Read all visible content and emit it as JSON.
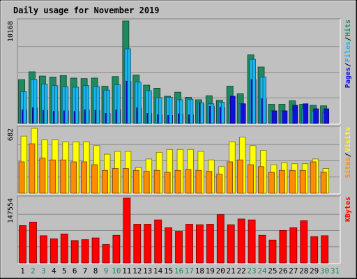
{
  "chart_data": {
    "type": "bar",
    "title": "Daily usage for November 2019",
    "days": [
      "1",
      "2",
      "3",
      "4",
      "5",
      "6",
      "7",
      "8",
      "9",
      "10",
      "11",
      "12",
      "13",
      "14",
      "15",
      "16",
      "17",
      "18",
      "19",
      "20",
      "21",
      "22",
      "23",
      "24",
      "25",
      "26",
      "27",
      "28",
      "29",
      "30",
      "31"
    ],
    "weekend_days": [
      "2",
      "3",
      "9",
      "10",
      "16",
      "17",
      "23",
      "24",
      "30",
      "31"
    ],
    "colors": {
      "background": "#c0c0c0",
      "title": "#0000cc",
      "hits": "#1f8a5f",
      "files": "#1ab6ef",
      "pages": "#1010dd",
      "visits": "#ffff00",
      "sites": "#ff8c00",
      "kbytes": "#ff0000",
      "weekend_label": "#1f8a5f",
      "weekday_label": "#000000"
    },
    "panels": [
      {
        "max_label": "10168",
        "ymax": 10168,
        "legend": [
          {
            "text": "Hits",
            "color": "#1f8a5f"
          },
          {
            "text": "Files",
            "color": "#1ab6ef"
          },
          {
            "text": "Pages",
            "color": "#1010dd"
          }
        ],
        "series": [
          {
            "name": "Hits",
            "values": [
              4350,
              5120,
              4700,
              4600,
              4750,
              4500,
              4450,
              4500,
              3700,
              4650,
              10168,
              4800,
              3800,
              3500,
              2700,
              3100,
              2600,
              2350,
              2750,
              2300,
              3700,
              2950,
              6800,
              5600,
              1900,
              1900,
              2250,
              1900,
              1800,
              1750,
              null
            ]
          },
          {
            "name": "Files",
            "values": [
              3150,
              4350,
              3900,
              3750,
              3650,
              3600,
              3750,
              3650,
              3300,
              3850,
              7400,
              4100,
              3250,
              2550,
              2600,
              2350,
              2400,
              2050,
              1950,
              2100,
              2000,
              1950,
              6350,
              4600,
              1250,
              1250,
              1350,
              1500,
              1200,
              1100,
              null
            ]
          },
          {
            "name": "Pages",
            "values": [
              1350,
              1550,
              1300,
              1200,
              1250,
              1200,
              1350,
              1300,
              1000,
              1350,
              4200,
              1550,
              1000,
              850,
              800,
              950,
              850,
              2000,
              1700,
              1600,
              2700,
              1950,
              4350,
              2450,
              1250,
              1250,
              1800,
              1950,
              1450,
              1450,
              null
            ]
          }
        ]
      },
      {
        "max_label": "682",
        "ymax": 682,
        "legend": [
          {
            "text": "Visits",
            "color": "#ffff00"
          },
          {
            "text": "Sites",
            "color": "#ff8c00"
          }
        ],
        "series": [
          {
            "name": "Visits",
            "values": [
              600,
              682,
              560,
              560,
              540,
              540,
              540,
              500,
              410,
              440,
              440,
              270,
              360,
              430,
              460,
              460,
              460,
              440,
              350,
              280,
              540,
              590,
              500,
              450,
              300,
              320,
              310,
              310,
              360,
              260,
              null
            ]
          },
          {
            "name": "Sites",
            "values": [
              330,
              520,
              370,
              350,
              350,
              330,
              330,
              300,
              240,
              260,
              260,
              240,
              230,
              240,
              220,
              240,
              250,
              240,
              230,
              200,
              330,
              350,
              300,
              280,
              220,
              240,
              240,
              240,
              330,
              220,
              null
            ]
          }
        ]
      },
      {
        "max_label": "147554",
        "ymax": 147554,
        "legend": [
          {
            "text": "KBytes",
            "color": "#ff0000"
          }
        ],
        "series": [
          {
            "name": "KBytes",
            "values": [
              85000,
              93000,
              62000,
              55000,
              66000,
              51000,
              53000,
              57000,
              42000,
              63000,
              147554,
              88000,
              88000,
              98000,
              80000,
              72000,
              88000,
              87000,
              88000,
              110000,
              87000,
              100000,
              98000,
              63000,
              52000,
              74000,
              80000,
              96000,
              60000,
              62000,
              null
            ]
          }
        ]
      }
    ]
  }
}
